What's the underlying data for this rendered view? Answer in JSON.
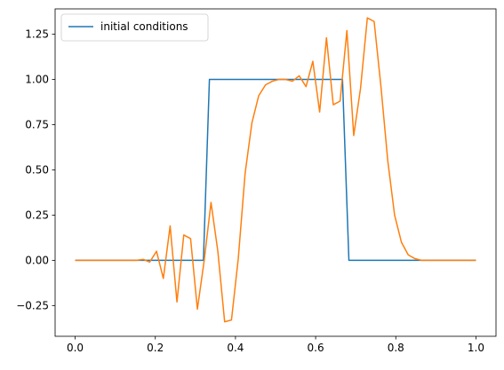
{
  "chart_data": {
    "type": "line",
    "title": "",
    "xlabel": "",
    "ylabel": "",
    "xlim": [
      -0.05,
      1.05
    ],
    "ylim": [
      -0.42,
      1.39
    ],
    "xticks": [
      0.0,
      0.2,
      0.4,
      0.6,
      0.8,
      1.0
    ],
    "xtick_labels": [
      "0.0",
      "0.2",
      "0.4",
      "0.6",
      "0.8",
      "1.0"
    ],
    "yticks": [
      -0.25,
      0.0,
      0.25,
      0.5,
      0.75,
      1.0,
      1.25
    ],
    "ytick_labels": [
      "−0.25",
      "0.00",
      "0.25",
      "0.50",
      "0.75",
      "1.00",
      "1.25"
    ],
    "grid": false,
    "legend_position": "top-left",
    "series": [
      {
        "name": "initial conditions",
        "color": "#1f77b4",
        "x": [
          0.0,
          0.32,
          0.335,
          0.667,
          0.683,
          1.0
        ],
        "y": [
          0.0,
          0.0,
          1.0,
          1.0,
          0.0,
          0.0
        ]
      },
      {
        "name": "",
        "color": "#ff7f0e",
        "x": [
          0.0,
          0.017,
          0.034,
          0.051,
          0.068,
          0.085,
          0.102,
          0.119,
          0.136,
          0.153,
          0.17,
          0.186,
          0.203,
          0.22,
          0.237,
          0.254,
          0.271,
          0.288,
          0.305,
          0.322,
          0.339,
          0.356,
          0.373,
          0.39,
          0.407,
          0.424,
          0.441,
          0.458,
          0.475,
          0.492,
          0.508,
          0.525,
          0.542,
          0.559,
          0.576,
          0.593,
          0.61,
          0.627,
          0.644,
          0.661,
          0.678,
          0.695,
          0.712,
          0.729,
          0.746,
          0.763,
          0.78,
          0.797,
          0.814,
          0.831,
          0.847,
          0.864,
          0.881,
          0.898,
          0.915,
          0.932,
          0.949,
          0.966,
          0.983,
          1.0
        ],
        "y": [
          0.0,
          0.0,
          0.0,
          0.0,
          0.0,
          0.0,
          0.0,
          0.0,
          0.0,
          0.0,
          0.005,
          -0.01,
          0.05,
          -0.1,
          0.19,
          -0.23,
          0.14,
          0.12,
          -0.27,
          0.0,
          0.32,
          0.05,
          -0.34,
          -0.33,
          0.01,
          0.48,
          0.76,
          0.91,
          0.97,
          0.99,
          1.0,
          1.0,
          0.99,
          1.02,
          0.96,
          1.1,
          0.82,
          1.23,
          0.86,
          0.88,
          1.27,
          0.69,
          0.95,
          1.34,
          1.32,
          0.96,
          0.55,
          0.25,
          0.1,
          0.03,
          0.01,
          0.0,
          0.0,
          0.0,
          0.0,
          0.0,
          0.0,
          0.0,
          0.0,
          0.0
        ]
      }
    ]
  }
}
